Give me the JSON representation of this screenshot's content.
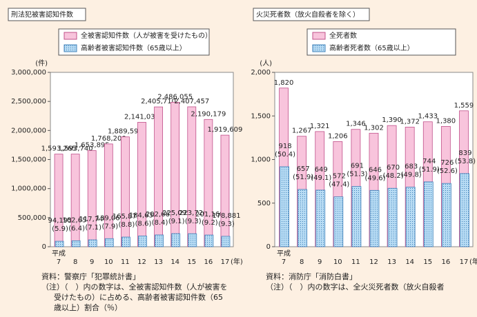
{
  "chart_data": [
    {
      "type": "bar",
      "title": "刑法犯被害認知件数",
      "y_unit": "(件)",
      "x_prefix": "平成",
      "x_unit": "(年)",
      "categories": [
        "7",
        "8",
        "9",
        "10",
        "11",
        "12",
        "13",
        "14",
        "15",
        "16",
        "17"
      ],
      "series": [
        {
          "name": "全被害認知件数（人が被害を受けたもの）",
          "color": "#f8c4dc",
          "values": [
            1593265,
            1593740,
            1653895,
            1768200,
            1889593,
            2141037,
            2405710,
            2486055,
            2407457,
            2190179,
            1919609
          ],
          "value_labels": [
            "1,593,265",
            "1,593,740",
            "1,653,895",
            "1,768,200",
            "1,889,593",
            "2,141,037",
            "2,405,710",
            "2,486,055",
            "2,407,457",
            "2,190,179",
            "1,919,609"
          ]
        },
        {
          "name": "高齢者被害認知件数（65歳以上）",
          "color": "#a9d2f0",
          "values": [
            94195,
            102654,
            117740,
            139069,
            165873,
            184638,
            202662,
            225095,
            223720,
            201168,
            178881
          ],
          "value_labels": [
            "94,195",
            "102,654",
            "117,740",
            "139,069",
            "165,873",
            "184,638",
            "202,662",
            "225,095",
            "223,720",
            "201,168",
            "178,881"
          ],
          "share_labels": [
            "(5.9)",
            "(6.4)",
            "(7.1)",
            "(7.9)",
            "(8.8)",
            "(8.6)",
            "(8.4)",
            "(9.1)",
            "(9.3)",
            "(9.2)",
            "(9.3)"
          ]
        }
      ],
      "ylim": [
        0,
        3000000
      ],
      "yticks": [
        0,
        {
          "value": 500000,
          "label": "500,000"
        },
        {
          "value": 1000000,
          "label": "1,000,000"
        },
        {
          "value": 1500000,
          "label": "1,500,000"
        },
        {
          "value": 2000000,
          "label": "2,000,000"
        },
        {
          "value": 2500000,
          "label": "2,500,000"
        },
        {
          "value": 3000000,
          "label": "3,000,000"
        }
      ],
      "notes": [
        "資料：警察庁「犯罪統計書」",
        "（注）（　）内の数字は、全被害認知件数（人が被害を",
        "受けたもの）に占める、高齢者被害認知件数（65",
        "歳以上）割合（％）"
      ]
    },
    {
      "type": "bar",
      "title": "火災死者数（放火自殺者を除く）",
      "y_unit": "(人)",
      "x_prefix": "平成",
      "x_unit": "(年)",
      "categories": [
        "7",
        "8",
        "9",
        "10",
        "11",
        "12",
        "13",
        "14",
        "15",
        "16",
        "17"
      ],
      "series": [
        {
          "name": "全死者数",
          "color": "#f8c4dc",
          "values": [
            1820,
            1267,
            1321,
            1206,
            1346,
            1302,
            1390,
            1372,
            1433,
            1380,
            1559
          ],
          "value_labels": [
            "1,820",
            "1,267",
            "1,321",
            "1,206",
            "1,346",
            "1,302",
            "1,390",
            "1,372",
            "1,433",
            "1,380",
            "1,559"
          ]
        },
        {
          "name": "高齢者死者数（65歳以上）",
          "color": "#a9d2f0",
          "values": [
            918,
            657,
            649,
            572,
            691,
            646,
            670,
            683,
            744,
            726,
            839
          ],
          "share_labels": [
            "(50.4)",
            "(51.9)",
            "(49.1)",
            "(47.4)",
            "(51.3)",
            "(49.6)",
            "(48.2)",
            "(49.8)",
            "(51.9)",
            "(52.6)",
            "(53.8)"
          ]
        }
      ],
      "ylim": [
        0,
        2000
      ],
      "yticks": [
        0,
        500,
        {
          "value": 1000,
          "label": "1,000"
        },
        {
          "value": 1500,
          "label": "1,500"
        },
        {
          "value": 2000,
          "label": "2,000"
        }
      ],
      "notes": [
        "資料：消防庁「消防白書」",
        "（注）（　）内の数字は、全火災死者数（放火自殺者"
      ]
    }
  ]
}
